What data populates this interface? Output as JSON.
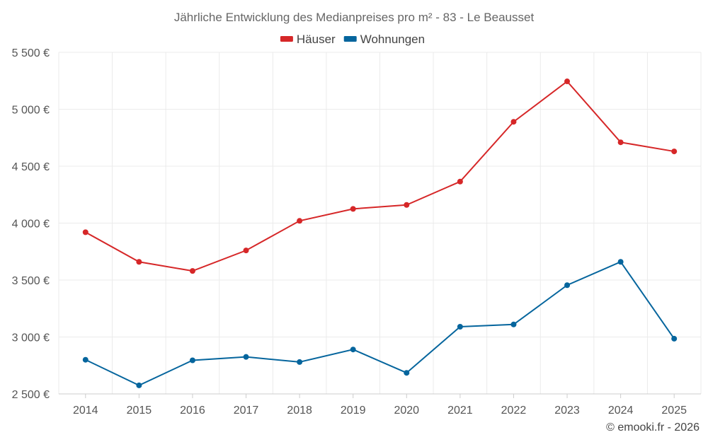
{
  "chart_data": {
    "type": "line",
    "title": "Jährliche Entwicklung des Medianpreises pro m² - 83 - Le Beausset",
    "categories": [
      "2014",
      "2015",
      "2016",
      "2017",
      "2018",
      "2019",
      "2020",
      "2021",
      "2022",
      "2023",
      "2024",
      "2025"
    ],
    "series": [
      {
        "name": "Häuser",
        "color": "#d62728",
        "values": [
          3920,
          3660,
          3580,
          3760,
          4020,
          4125,
          4160,
          4365,
          4890,
          5245,
          4710,
          4630
        ]
      },
      {
        "name": "Wohnungen",
        "color": "#05659d",
        "values": [
          2800,
          2575,
          2795,
          2825,
          2780,
          2890,
          2685,
          3090,
          3110,
          3455,
          3660,
          2985
        ]
      }
    ],
    "y_ticks": [
      {
        "value": 2500,
        "label": "2 500 €"
      },
      {
        "value": 3000,
        "label": "3 000 €"
      },
      {
        "value": 3500,
        "label": "3 500 €"
      },
      {
        "value": 4000,
        "label": "4 000 €"
      },
      {
        "value": 4500,
        "label": "4 500 €"
      },
      {
        "value": 5000,
        "label": "5 000 €"
      },
      {
        "value": 5500,
        "label": "5 500 €"
      }
    ],
    "ylim": [
      2500,
      5500
    ],
    "xlabel": "",
    "ylabel": "",
    "legend": "top-center",
    "grid": true
  },
  "footer": {
    "copyright": "© emooki.fr - 2026"
  }
}
